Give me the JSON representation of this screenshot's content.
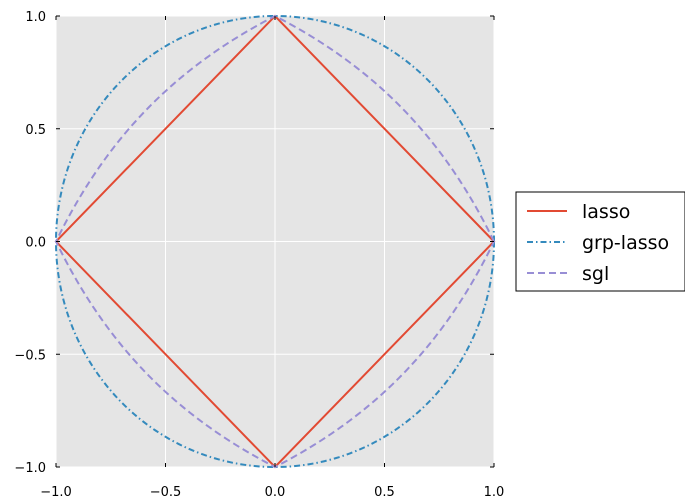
{
  "chart_data": {
    "type": "line",
    "title": "",
    "xlabel": "",
    "ylabel": "",
    "xlim": [
      -1.0,
      1.0
    ],
    "ylim": [
      -1.0,
      1.0
    ],
    "grid": true,
    "legend_placement": "right-outside",
    "xticks": [
      {
        "value": -1.0,
        "label": "−1.0"
      },
      {
        "value": -0.5,
        "label": "−0.5"
      },
      {
        "value": 0.0,
        "label": "0.0"
      },
      {
        "value": 0.5,
        "label": "0.5"
      },
      {
        "value": 1.0,
        "label": "1.0"
      }
    ],
    "yticks": [
      {
        "value": -1.0,
        "label": "−1.0"
      },
      {
        "value": -0.5,
        "label": "−0.5"
      },
      {
        "value": 0.0,
        "label": "0.0"
      },
      {
        "value": 0.5,
        "label": "0.5"
      },
      {
        "value": 1.0,
        "label": "1.0"
      }
    ],
    "series": [
      {
        "name": "lasso",
        "color": "#e24a33",
        "style": "solid",
        "description_shape": "unit L1 ball",
        "x": [
          1,
          0,
          -1,
          0,
          1
        ],
        "y": [
          0,
          1,
          0,
          -1,
          0
        ]
      },
      {
        "name": "grp-lasso",
        "color": "#348abd",
        "style": "dashdot",
        "description_shape": "unit L2 ball",
        "x": [
          1,
          0.7071,
          0,
          -0.7071,
          -1,
          -0.7071,
          0,
          0.7071,
          1
        ],
        "y": [
          0,
          0.7071,
          1,
          0.7071,
          0,
          -0.7071,
          -1,
          -0.7071,
          0
        ]
      },
      {
        "name": "sgl",
        "color": "#988ed5",
        "style": "dashed",
        "description_shape": "sparse group lasso ball (alpha=0.5)",
        "x": [
          1,
          0.5858,
          0,
          -0.5858,
          -1,
          -0.5858,
          0,
          0.5858,
          1
        ],
        "y": [
          0,
          0.5858,
          1,
          0.5858,
          0,
          -0.5858,
          -1,
          -0.5858,
          0
        ]
      }
    ]
  },
  "colors": {
    "plot_background": "#e5e5e5",
    "grid": "#ffffff"
  }
}
